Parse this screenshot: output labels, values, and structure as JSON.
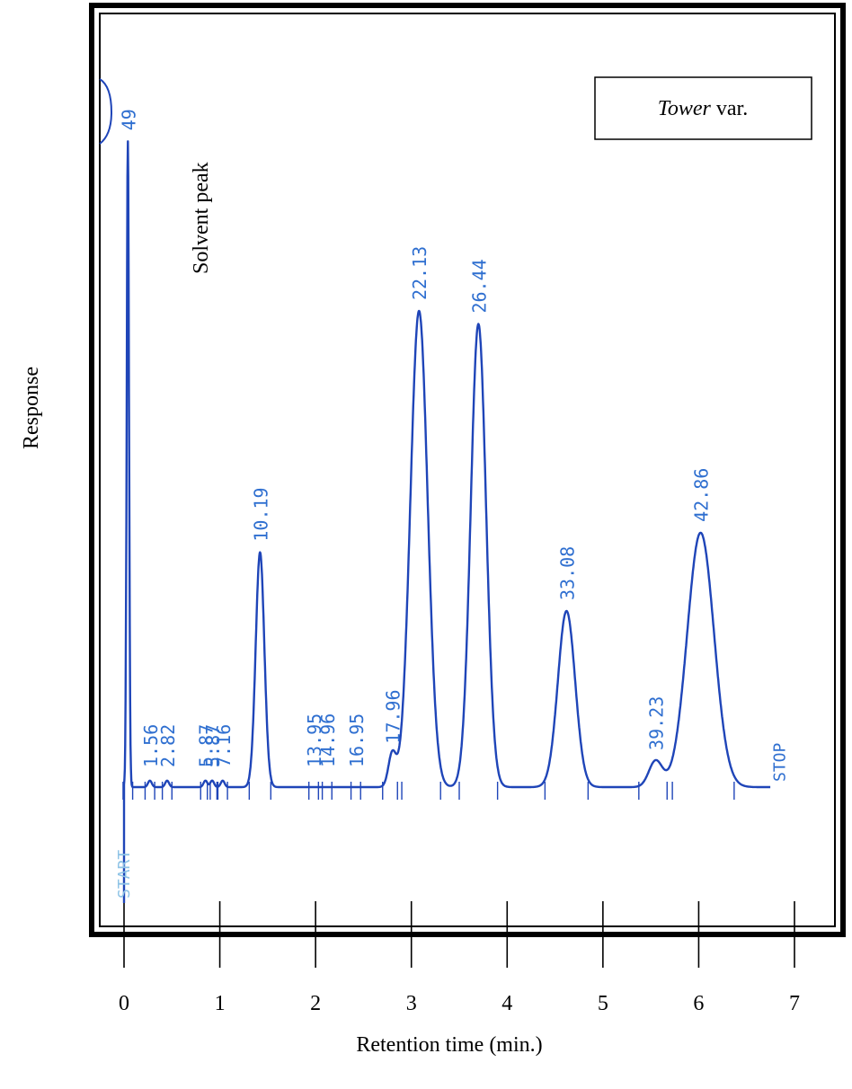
{
  "chart_data": {
    "type": "line",
    "title": "",
    "xlabel": "Retention time (min.)",
    "ylabel": "Response",
    "xlim": [
      0,
      7
    ],
    "x_ticks": [
      "0",
      "1",
      "2",
      "3",
      "4",
      "5",
      "6",
      "7"
    ],
    "grid": false,
    "legend": "none",
    "inset_label": {
      "italic": "Tower",
      "rest": " var."
    },
    "annotations": [
      {
        "text": "Solvent peak",
        "x": 0.7
      }
    ],
    "start_label": "START",
    "stop_label": "STOP",
    "peak_label_color": "#2f6fd0",
    "trace_color": "#1f45b8",
    "peaks": [
      {
        "label": "49",
        "x": 0.04,
        "height": 0.99,
        "width": 0.012
      },
      {
        "label": "1.56",
        "x": 0.27,
        "height": 0.01,
        "width": 0.02
      },
      {
        "label": "2.82",
        "x": 0.45,
        "height": 0.01,
        "width": 0.02
      },
      {
        "label": "5.87",
        "x": 0.85,
        "height": 0.01,
        "width": 0.02
      },
      {
        "label": "5.87",
        "x": 0.92,
        "height": 0.01,
        "width": 0.02
      },
      {
        "label": "7.16",
        "x": 1.03,
        "height": 0.01,
        "width": 0.02
      },
      {
        "label": "10.19",
        "x": 1.42,
        "height": 0.36,
        "width": 0.045
      },
      {
        "label": "13.95",
        "x": 1.98,
        "height": 0.0,
        "width": 0.02
      },
      {
        "label": "14.96",
        "x": 2.12,
        "height": 0.0,
        "width": 0.02
      },
      {
        "label": "16.95",
        "x": 2.42,
        "height": 0.0,
        "width": 0.02
      },
      {
        "label": "17.96",
        "x": 2.8,
        "height": 0.05,
        "width": 0.04
      },
      {
        "label": "22.13",
        "x": 3.08,
        "height": 0.73,
        "width": 0.09
      },
      {
        "label": "26.44",
        "x": 3.7,
        "height": 0.71,
        "width": 0.08
      },
      {
        "label": "33.08",
        "x": 4.62,
        "height": 0.27,
        "width": 0.09
      },
      {
        "label": "39.23",
        "x": 5.55,
        "height": 0.04,
        "width": 0.07
      },
      {
        "label": "42.86",
        "x": 6.02,
        "height": 0.39,
        "width": 0.14
      }
    ]
  }
}
